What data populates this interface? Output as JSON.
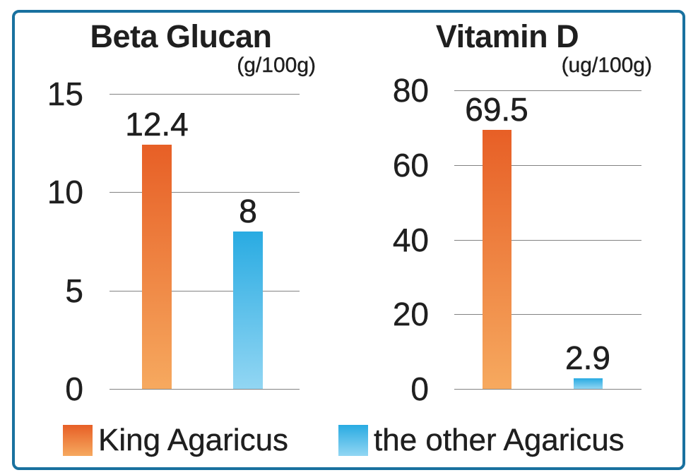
{
  "colors": {
    "border": "#19719F",
    "grid": "#828282",
    "text": "#1F1F1F",
    "king_agaricus_top": "#E75F26",
    "king_agaricus_bottom": "#F6A95F",
    "other_agaricus_top": "#29ABE2",
    "other_agaricus_bottom": "#92D6F3"
  },
  "chart_data": [
    {
      "type": "bar",
      "title": "Beta Glucan",
      "unit_label": "(g/100g)",
      "categories": [
        "King Agaricus",
        "the other Agaricus"
      ],
      "values": [
        12.4,
        8
      ],
      "value_labels": [
        "12.4",
        "8"
      ],
      "ylim": [
        0,
        15
      ],
      "yticks": [
        15,
        10,
        5,
        0
      ],
      "grid": true,
      "legend_position": "bottom"
    },
    {
      "type": "bar",
      "title": "Vitamin D",
      "unit_label": "(ug/100g)",
      "categories": [
        "King Agaricus",
        "the other Agaricus"
      ],
      "values": [
        69.5,
        2.9
      ],
      "value_labels": [
        "69.5",
        "2.9"
      ],
      "ylim": [
        0,
        80
      ],
      "yticks": [
        80,
        60,
        40,
        20,
        0
      ],
      "grid": true,
      "legend_position": "bottom"
    }
  ],
  "legend": {
    "items": [
      {
        "label": "King Agaricus",
        "color_top": "#E75F26",
        "color_bottom": "#F6A95F"
      },
      {
        "label": "the other Agaricus",
        "color_top": "#29ABE2",
        "color_bottom": "#92D6F3"
      }
    ]
  }
}
